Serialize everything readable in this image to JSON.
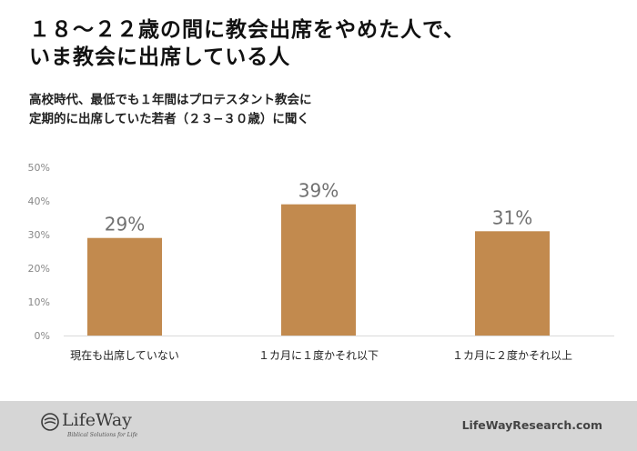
{
  "title_line1": "１８～２２歳の間に教会出席をやめた人で、",
  "title_line2": "いま教会に出席している人",
  "subtitle_line1": "高校時代、最低でも１年間はプロテスタント教会に",
  "subtitle_line2": "定期的に出席していた若者（２３−３０歳）に聞く",
  "chart_data": {
    "type": "bar",
    "title": "",
    "xlabel": "",
    "ylabel": "",
    "categories": [
      "現在も出席していない",
      "１カ月に１度かそれ以下",
      "１カ月に２度かそれ以上"
    ],
    "values": [
      29,
      39,
      31
    ],
    "value_labels": [
      "29%",
      "39%",
      "31%"
    ],
    "ylim": [
      0,
      50
    ],
    "yticks": [
      "0%",
      "10%",
      "20%",
      "30%",
      "40%",
      "50%"
    ],
    "grid": false,
    "legend": "none",
    "bar_color": "#c28a4e"
  },
  "footer": {
    "logo_text": "LifeWay",
    "logo_tagline": "Biblical Solutions for Life",
    "logo_icon": "lifeway-mark-icon",
    "website": "LifeWayResearch.com",
    "background": "#d6d6d6"
  }
}
